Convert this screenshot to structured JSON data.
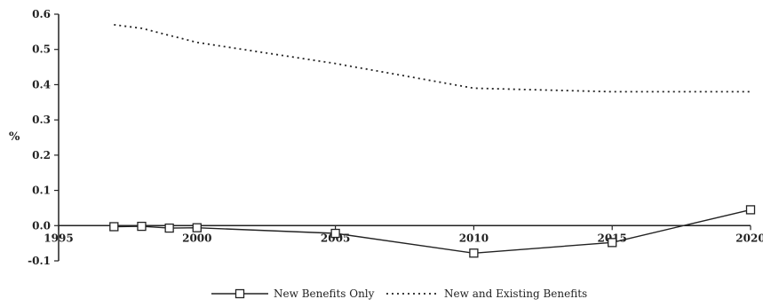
{
  "chart_data": {
    "type": "line",
    "title": "",
    "xlabel": "",
    "ylabel": "%",
    "xlim": [
      1995,
      2020
    ],
    "ylim": [
      -0.1,
      0.6
    ],
    "x_ticks": [
      1995,
      2000,
      2005,
      2010,
      2015,
      2020
    ],
    "y_ticks": [
      0.6,
      0.5,
      0.4,
      0.3,
      0.2,
      0.1,
      0.0,
      -0.1
    ],
    "y_tick_labels": [
      "0.6",
      "0.5",
      "0.4",
      "0.3",
      "0.2",
      "0.1",
      "0.0",
      "-0.1"
    ],
    "grid": false,
    "legend_position": "bottom",
    "series": [
      {
        "name": "New Benefits Only",
        "style": "solid-square-markers",
        "color": "#222222",
        "x": [
          1997,
          1998,
          1999,
          2000,
          2005,
          2010,
          2015,
          2020
        ],
        "y": [
          -0.003,
          -0.002,
          -0.007,
          -0.006,
          -0.022,
          -0.078,
          -0.048,
          0.045
        ]
      },
      {
        "name": "New and Existing Benefits",
        "style": "dotted",
        "color": "#222222",
        "x": [
          1997,
          1998,
          2000,
          2005,
          2010,
          2015,
          2020
        ],
        "y": [
          0.57,
          0.56,
          0.52,
          0.46,
          0.39,
          0.38,
          0.38
        ]
      }
    ]
  }
}
